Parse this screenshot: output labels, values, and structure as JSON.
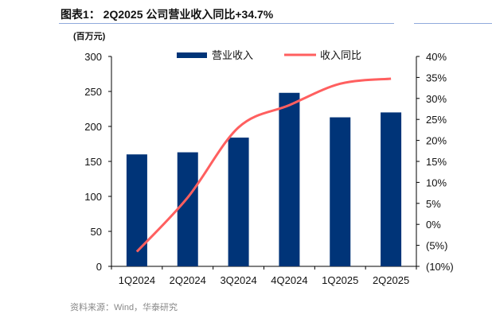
{
  "title": "图表1： 2Q2025 公司营业收入同比+34.7%",
  "unit": "(百万元)",
  "source": "资料来源：Wind，华泰研究",
  "chart_data": {
    "type": "bar+line",
    "categories": [
      "1Q2024",
      "2Q2024",
      "3Q2024",
      "4Q2024",
      "1Q2025",
      "2Q2025"
    ],
    "series": [
      {
        "name": "营业收入",
        "type": "bar",
        "axis": "left",
        "color": "#003478",
        "values": [
          160,
          163,
          184,
          248,
          213,
          220
        ]
      },
      {
        "name": "收入同比",
        "type": "line",
        "axis": "right",
        "color": "#ff5f5f",
        "values": [
          -6.5,
          6.4,
          23.1,
          28.4,
          33.5,
          34.7
        ]
      }
    ],
    "left_axis": {
      "ylim": [
        0,
        300
      ],
      "ticks": [
        "0",
        "50",
        "100",
        "150",
        "200",
        "250",
        "300"
      ]
    },
    "right_axis": {
      "ylim": [
        -10,
        40
      ],
      "ticks": [
        "(10%)",
        "(5%)",
        "0%",
        "5%",
        "10%",
        "15%",
        "20%",
        "25%",
        "30%",
        "35%",
        "40%"
      ]
    },
    "legend": "top-center"
  }
}
